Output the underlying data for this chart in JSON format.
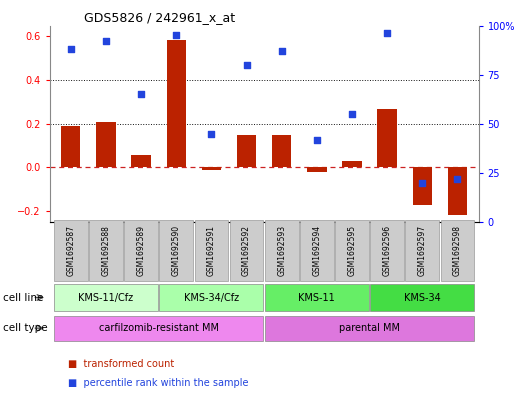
{
  "title": "GDS5826 / 242961_x_at",
  "samples": [
    "GSM1692587",
    "GSM1692588",
    "GSM1692589",
    "GSM1692590",
    "GSM1692591",
    "GSM1692592",
    "GSM1692593",
    "GSM1692594",
    "GSM1692595",
    "GSM1692596",
    "GSM1692597",
    "GSM1692598"
  ],
  "transformed_count": [
    0.19,
    0.21,
    0.055,
    0.585,
    -0.01,
    0.15,
    0.15,
    -0.02,
    0.03,
    0.27,
    -0.17,
    -0.22
  ],
  "percentile_rank": [
    88,
    92,
    65,
    95,
    45,
    80,
    87,
    42,
    55,
    96,
    20,
    22
  ],
  "ylim_left": [
    -0.25,
    0.65
  ],
  "ylim_right": [
    0,
    100
  ],
  "yticks_left": [
    -0.2,
    0.0,
    0.2,
    0.4,
    0.6
  ],
  "yticks_right": [
    0,
    25,
    50,
    75,
    100
  ],
  "bar_color": "#bb2200",
  "dot_color": "#2244dd",
  "zeroline_color": "#cc2222",
  "grid_color": "#111111",
  "cell_line_groups": [
    {
      "label": "KMS-11/Cfz",
      "start": 0,
      "end": 3,
      "color": "#ccffcc"
    },
    {
      "label": "KMS-34/Cfz",
      "start": 3,
      "end": 6,
      "color": "#aaffaa"
    },
    {
      "label": "KMS-11",
      "start": 6,
      "end": 9,
      "color": "#66ee66"
    },
    {
      "label": "KMS-34",
      "start": 9,
      "end": 12,
      "color": "#44dd44"
    }
  ],
  "cell_type_groups": [
    {
      "label": "carfilzomib-resistant MM",
      "start": 0,
      "end": 6,
      "color": "#ee88ee"
    },
    {
      "label": "parental MM",
      "start": 6,
      "end": 12,
      "color": "#dd77dd"
    }
  ],
  "cell_line_row_label": "cell line",
  "cell_type_row_label": "cell type",
  "legend_items": [
    {
      "label": "transformed count",
      "color": "#bb2200"
    },
    {
      "label": "percentile rank within the sample",
      "color": "#2244dd"
    }
  ],
  "sample_box_color": "#cccccc",
  "sample_box_edge": "#999999"
}
